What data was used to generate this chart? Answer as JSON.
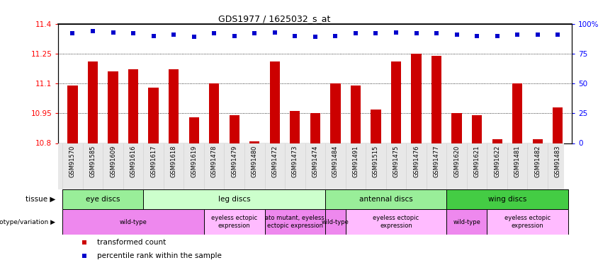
{
  "title": "GDS1977 / 1625032_s_at",
  "samples": [
    "GSM91570",
    "GSM91585",
    "GSM91609",
    "GSM91616",
    "GSM91617",
    "GSM91618",
    "GSM91619",
    "GSM91478",
    "GSM91479",
    "GSM91480",
    "GSM91472",
    "GSM91473",
    "GSM91474",
    "GSM91484",
    "GSM91491",
    "GSM91515",
    "GSM91475",
    "GSM91476",
    "GSM91477",
    "GSM91620",
    "GSM91621",
    "GSM91622",
    "GSM91481",
    "GSM91482",
    "GSM91483"
  ],
  "bar_values": [
    11.09,
    11.21,
    11.16,
    11.17,
    11.08,
    11.17,
    10.93,
    11.1,
    10.94,
    10.81,
    11.21,
    10.96,
    10.95,
    11.1,
    11.09,
    10.97,
    11.21,
    11.25,
    11.24,
    10.95,
    10.94,
    10.82,
    11.1,
    10.82,
    10.98
  ],
  "percentile_values": [
    92,
    94,
    93,
    92,
    90,
    91,
    89,
    92,
    90,
    92,
    93,
    90,
    89,
    90,
    92,
    92,
    93,
    92,
    92,
    91,
    90,
    90,
    91,
    91,
    91
  ],
  "bar_color": "#cc0000",
  "percentile_color": "#0000cc",
  "ymin": 10.8,
  "ymax": 11.4,
  "y_ticks": [
    10.8,
    10.95,
    11.1,
    11.25,
    11.4
  ],
  "y_tick_labels": [
    "10.8",
    "10.95",
    "11.1",
    "11.25",
    "11.4"
  ],
  "right_y_ticks": [
    0,
    25,
    50,
    75,
    100
  ],
  "right_y_tick_labels": [
    "0",
    "25",
    "50",
    "75",
    "100%"
  ],
  "gridlines": [
    10.95,
    11.1,
    11.25
  ],
  "tissue_groups": [
    {
      "label": "eye discs",
      "start": 0,
      "end": 3,
      "color": "#99ee99"
    },
    {
      "label": "leg discs",
      "start": 4,
      "end": 12,
      "color": "#ccffcc"
    },
    {
      "label": "antennal discs",
      "start": 13,
      "end": 18,
      "color": "#99ee99"
    },
    {
      "label": "wing discs",
      "start": 19,
      "end": 24,
      "color": "#44cc44"
    }
  ],
  "genotype_groups": [
    {
      "label": "wild-type",
      "start": 0,
      "end": 6,
      "color": "#ee88ee"
    },
    {
      "label": "eyeless ectopic\nexpression",
      "start": 7,
      "end": 9,
      "color": "#ffbbff"
    },
    {
      "label": "ato mutant, eyeless\nectopic expression",
      "start": 10,
      "end": 12,
      "color": "#ee88ee"
    },
    {
      "label": "wild-type",
      "start": 13,
      "end": 13,
      "color": "#ee88ee"
    },
    {
      "label": "eyeless ectopic\nexpression",
      "start": 14,
      "end": 18,
      "color": "#ffbbff"
    },
    {
      "label": "wild-type",
      "start": 19,
      "end": 20,
      "color": "#ee88ee"
    },
    {
      "label": "eyeless ectopic\nexpression",
      "start": 21,
      "end": 24,
      "color": "#ffbbff"
    }
  ],
  "legend_items": [
    {
      "label": "transformed count",
      "color": "#cc0000"
    },
    {
      "label": "percentile rank within the sample",
      "color": "#0000cc"
    }
  ]
}
